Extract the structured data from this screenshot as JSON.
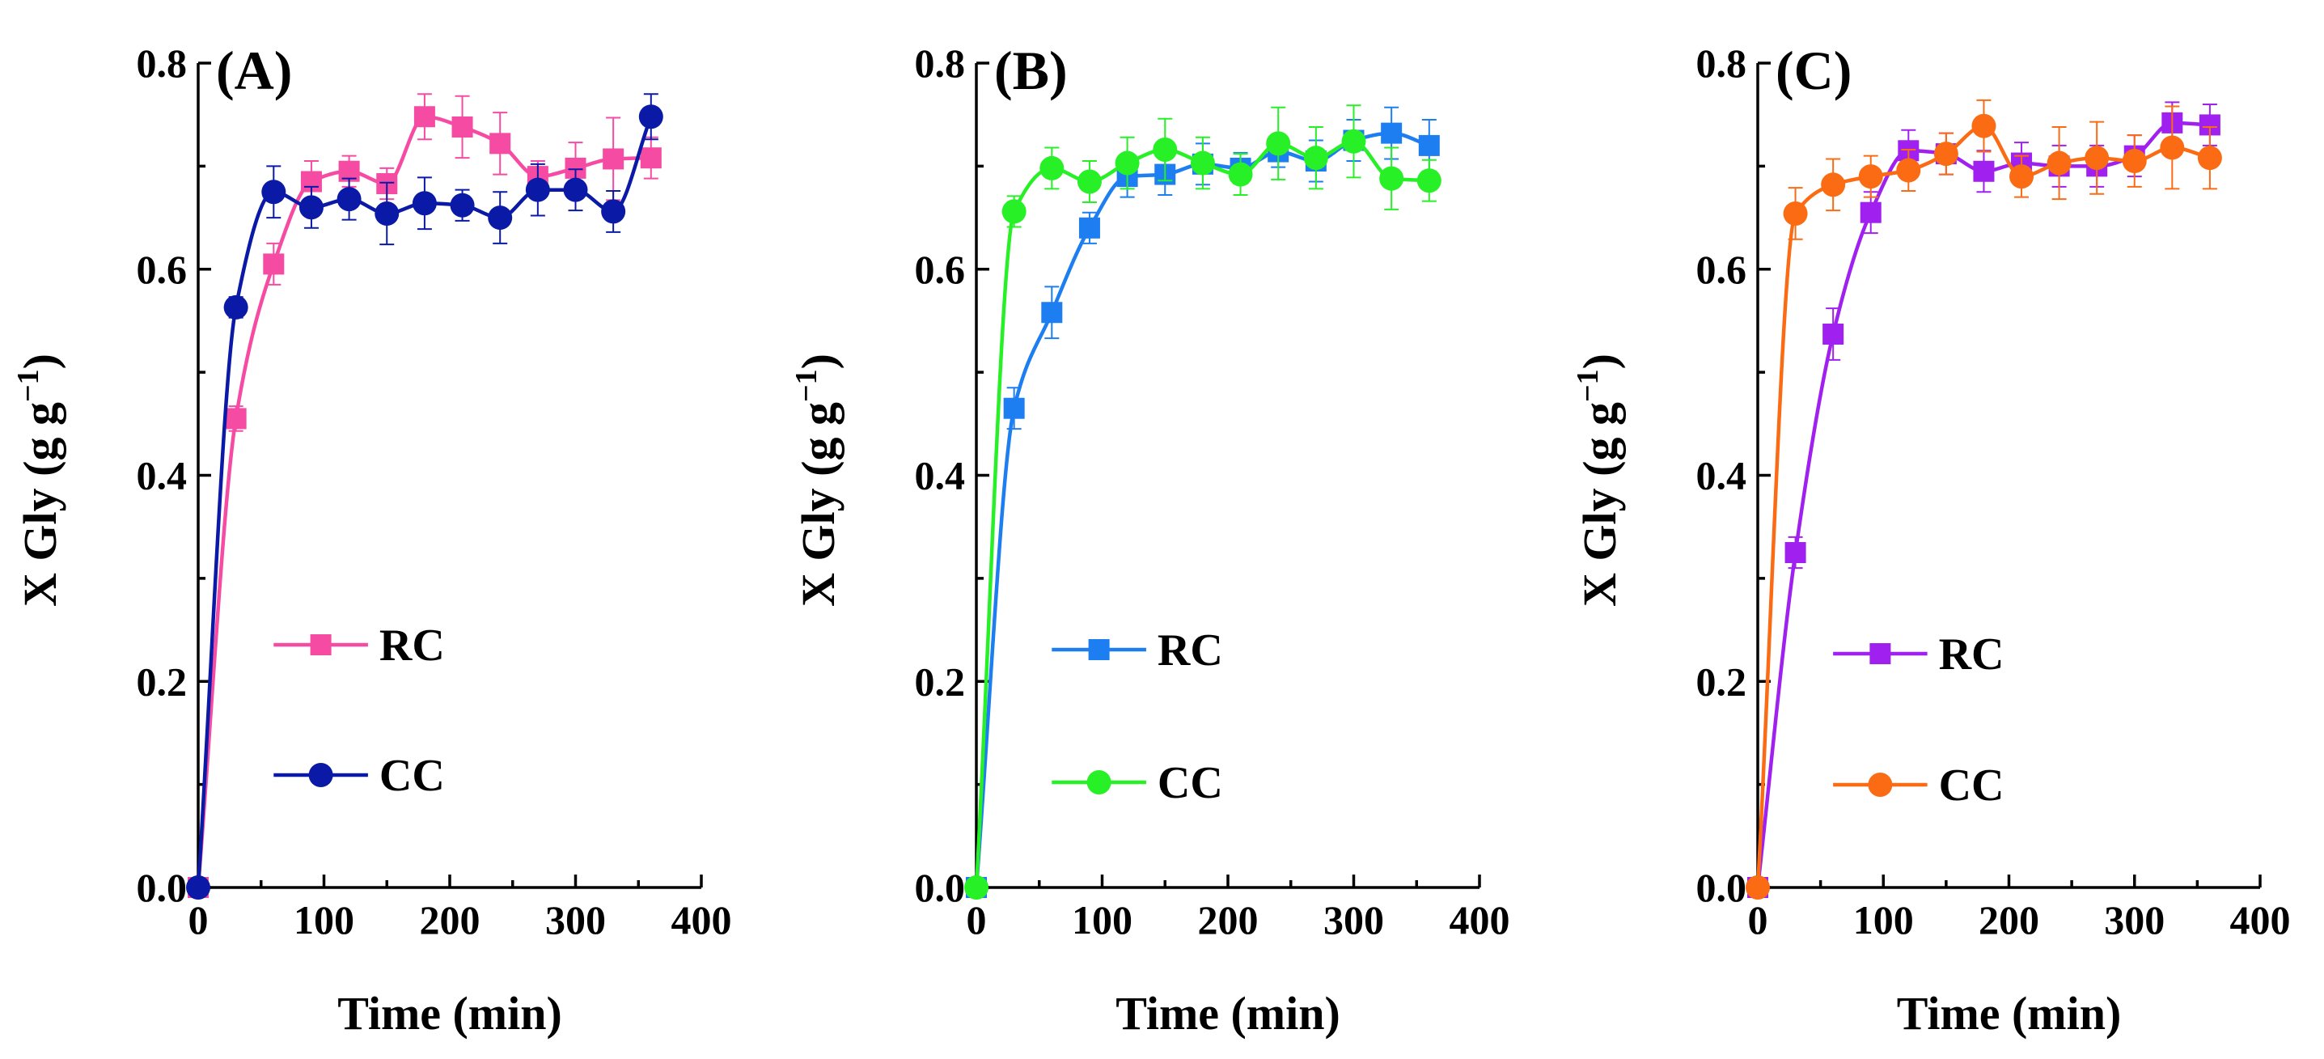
{
  "chart_data": [
    {
      "type": "line",
      "panel_label": "(A)",
      "xlabel": "Time (min)",
      "ylabel": "X Gly (g g",
      "ylabel_sup": "−1",
      "ylabel_close": ")",
      "xlim": [
        0,
        400
      ],
      "ylim": [
        0,
        0.8
      ],
      "xticks": [
        "0",
        "100",
        "200",
        "300",
        "400"
      ],
      "yticks": [
        "0.0",
        "0.2",
        "0.4",
        "0.6",
        "0.8"
      ],
      "series": [
        {
          "name": "RC",
          "marker": "square",
          "color": "#f54ba3",
          "x": [
            0,
            30,
            60,
            90,
            120,
            150,
            180,
            210,
            240,
            270,
            300,
            330,
            360
          ],
          "y": [
            0,
            0.455,
            0.605,
            0.685,
            0.695,
            0.683,
            0.748,
            0.738,
            0.722,
            0.69,
            0.698,
            0.707,
            0.708
          ],
          "err": [
            0,
            0.012,
            0.02,
            0.02,
            0.015,
            0.015,
            0.022,
            0.03,
            0.03,
            0.015,
            0.025,
            0.04,
            0.02
          ]
        },
        {
          "name": "CC",
          "marker": "circle",
          "color": "#0a1aa6",
          "x": [
            0,
            30,
            60,
            90,
            120,
            150,
            180,
            210,
            240,
            270,
            300,
            330,
            360
          ],
          "y": [
            0,
            0.563,
            0.675,
            0.66,
            0.668,
            0.654,
            0.664,
            0.662,
            0.65,
            0.677,
            0.677,
            0.656,
            0.748
          ],
          "err": [
            0,
            0.01,
            0.025,
            0.02,
            0.02,
            0.03,
            0.025,
            0.015,
            0.025,
            0.025,
            0.02,
            0.02,
            0.022
          ]
        }
      ]
    },
    {
      "type": "line",
      "panel_label": "(B)",
      "xlabel": "Time (min)",
      "ylabel": "X Gly (g g",
      "ylabel_sup": "−1",
      "ylabel_close": ")",
      "xlim": [
        0,
        400
      ],
      "ylim": [
        0,
        0.8
      ],
      "xticks": [
        "0",
        "100",
        "200",
        "300",
        "400"
      ],
      "yticks": [
        "0.0",
        "0.2",
        "0.4",
        "0.6",
        "0.8"
      ],
      "series": [
        {
          "name": "RC",
          "marker": "square",
          "color": "#1c7ef0",
          "x": [
            0,
            30,
            60,
            90,
            120,
            150,
            180,
            210,
            240,
            270,
            300,
            330,
            360
          ],
          "y": [
            0,
            0.465,
            0.558,
            0.64,
            0.69,
            0.692,
            0.702,
            0.698,
            0.714,
            0.705,
            0.725,
            0.732,
            0.72
          ],
          "err": [
            0,
            0.02,
            0.025,
            0.015,
            0.02,
            0.02,
            0.02,
            0.015,
            0.015,
            0.02,
            0.02,
            0.025,
            0.025
          ]
        },
        {
          "name": "CC",
          "marker": "circle",
          "color": "#27f027",
          "x": [
            0,
            30,
            60,
            90,
            120,
            150,
            180,
            210,
            240,
            270,
            300,
            330,
            360
          ],
          "y": [
            0,
            0.656,
            0.698,
            0.685,
            0.703,
            0.716,
            0.703,
            0.692,
            0.722,
            0.708,
            0.724,
            0.688,
            0.686
          ],
          "err": [
            0,
            0.015,
            0.02,
            0.02,
            0.025,
            0.03,
            0.025,
            0.02,
            0.035,
            0.03,
            0.035,
            0.03,
            0.02
          ]
        }
      ]
    },
    {
      "type": "line",
      "panel_label": "(C)",
      "xlabel": "Time (min)",
      "ylabel": "X Gly (g g",
      "ylabel_sup": "−1",
      "ylabel_close": ")",
      "xlim": [
        0,
        400
      ],
      "ylim": [
        0,
        0.8
      ],
      "xticks": [
        "0",
        "100",
        "200",
        "300",
        "400"
      ],
      "yticks": [
        "0.0",
        "0.2",
        "0.4",
        "0.6",
        "0.8"
      ],
      "series": [
        {
          "name": "RC",
          "marker": "square",
          "color": "#a020f0",
          "x": [
            0,
            30,
            60,
            90,
            120,
            150,
            180,
            210,
            240,
            270,
            300,
            330,
            360
          ],
          "y": [
            0,
            0.325,
            0.537,
            0.655,
            0.715,
            0.712,
            0.695,
            0.703,
            0.7,
            0.7,
            0.71,
            0.742,
            0.74
          ],
          "err": [
            0,
            0.015,
            0.025,
            0.02,
            0.02,
            0.02,
            0.02,
            0.02,
            0.02,
            0.02,
            0.02,
            0.02,
            0.02
          ]
        },
        {
          "name": "CC",
          "marker": "circle",
          "color": "#fa6b14",
          "x": [
            0,
            30,
            60,
            90,
            120,
            150,
            180,
            210,
            240,
            270,
            300,
            330,
            360
          ],
          "y": [
            0,
            0.654,
            0.682,
            0.69,
            0.696,
            0.712,
            0.739,
            0.69,
            0.703,
            0.708,
            0.705,
            0.718,
            0.708
          ],
          "err": [
            0,
            0.025,
            0.025,
            0.02,
            0.02,
            0.02,
            0.025,
            0.02,
            0.035,
            0.035,
            0.025,
            0.04,
            0.03
          ]
        }
      ]
    }
  ]
}
